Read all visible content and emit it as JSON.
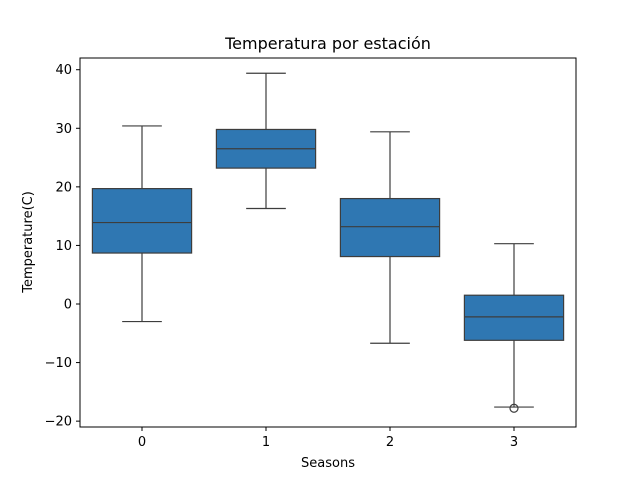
{
  "chart_data": {
    "type": "boxplot",
    "title": "Temperatura por estación",
    "xlabel": "Seasons",
    "ylabel": "Temperature(C)",
    "categories": [
      "0",
      "1",
      "2",
      "3"
    ],
    "ylim": [
      -21,
      42
    ],
    "yticks": [
      -20,
      -10,
      0,
      10,
      20,
      30,
      40
    ],
    "ytick_labels": [
      "−20",
      "−10",
      "0",
      "10",
      "20",
      "30",
      "40"
    ],
    "grid": false,
    "box_color": "#2f77b2",
    "line_color": "#3d3d3d",
    "boxes": [
      {
        "category": "0",
        "whisker_low": -3.0,
        "q1": 8.7,
        "median": 13.9,
        "q3": 19.7,
        "whisker_high": 30.4,
        "outliers": []
      },
      {
        "category": "1",
        "whisker_low": 16.3,
        "q1": 23.2,
        "median": 26.5,
        "q3": 29.8,
        "whisker_high": 39.4,
        "outliers": []
      },
      {
        "category": "2",
        "whisker_low": -6.7,
        "q1": 8.1,
        "median": 13.2,
        "q3": 18.0,
        "whisker_high": 29.4,
        "outliers": []
      },
      {
        "category": "3",
        "whisker_low": -17.6,
        "q1": -6.2,
        "median": -2.2,
        "q3": 1.5,
        "whisker_high": 10.3,
        "outliers": [
          -17.8
        ]
      }
    ]
  }
}
